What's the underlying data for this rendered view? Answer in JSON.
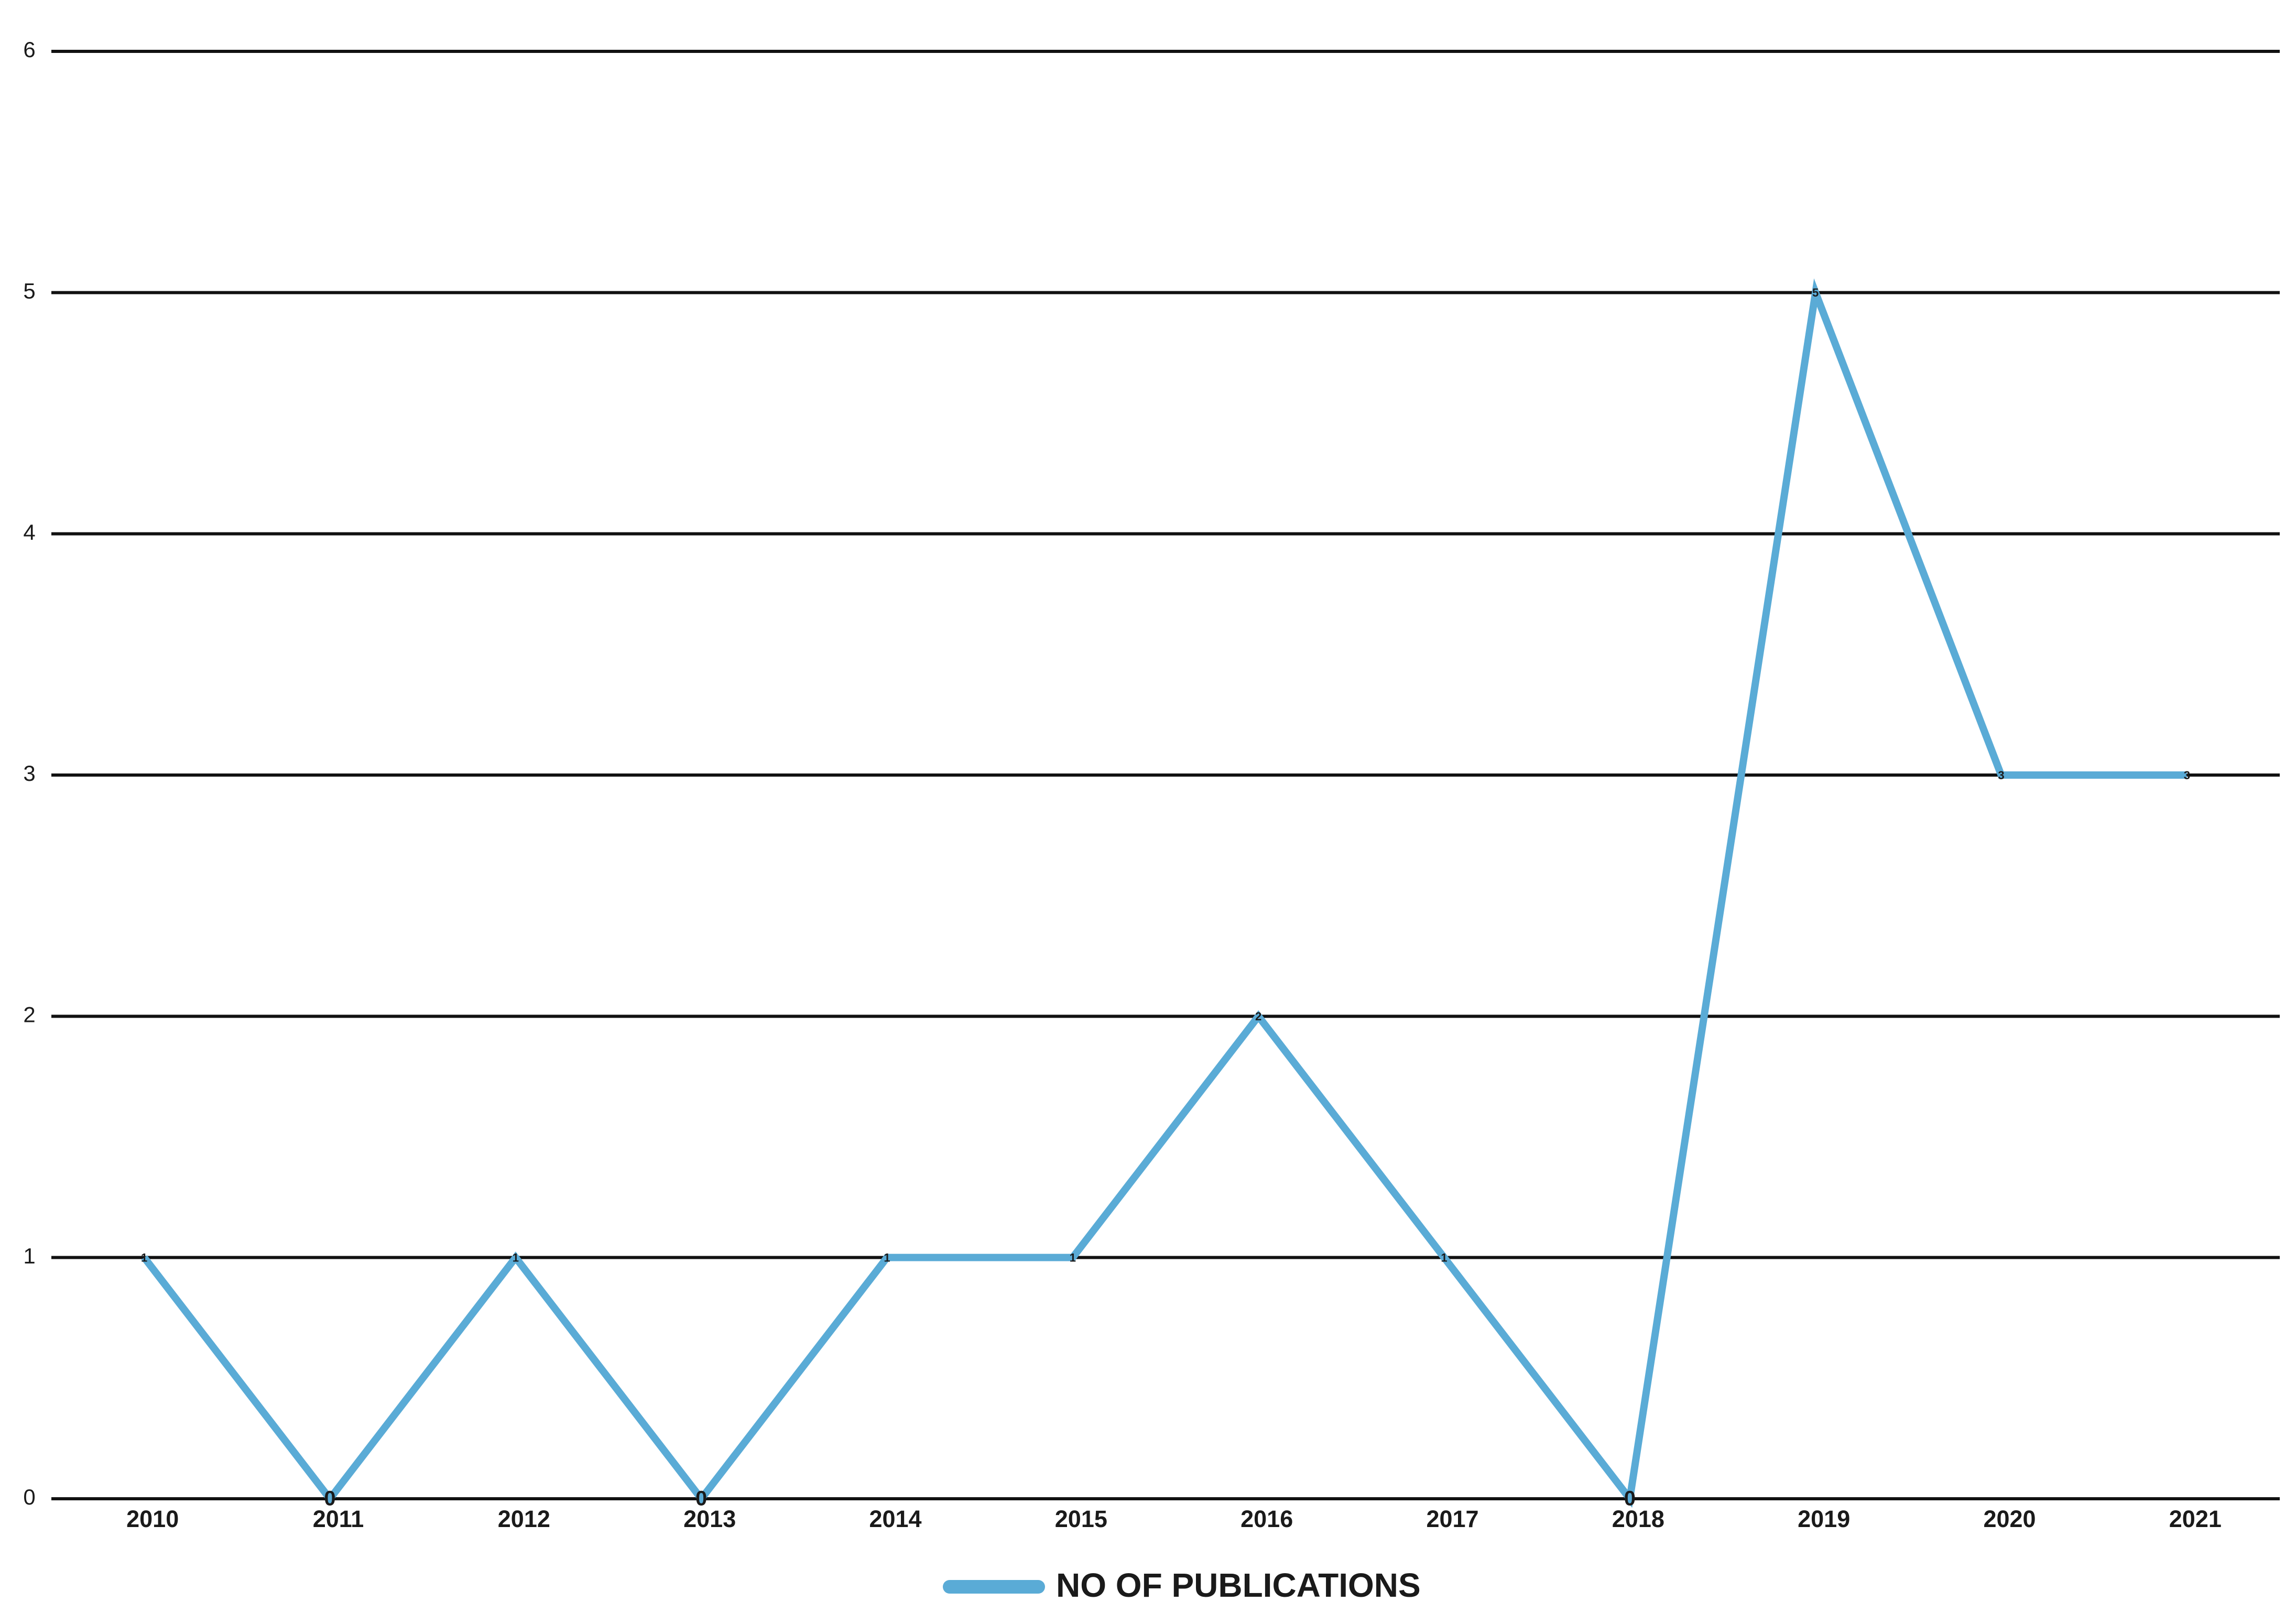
{
  "chart_data": {
    "type": "line",
    "categories": [
      "2010",
      "2011",
      "2012",
      "2013",
      "2014",
      "2015",
      "2016",
      "2017",
      "2018",
      "2019",
      "2020",
      "2021"
    ],
    "series": [
      {
        "name": "NO OF PUBLICATIONS",
        "color": "#5aabd6",
        "values": [
          1,
          0,
          1,
          0,
          1,
          1,
          2,
          1,
          0,
          5,
          3,
          3
        ]
      }
    ],
    "ylim": [
      0,
      6
    ],
    "yticks": [
      0,
      1,
      2,
      3,
      4,
      5,
      6
    ],
    "grid": true,
    "legend": "bottom"
  }
}
